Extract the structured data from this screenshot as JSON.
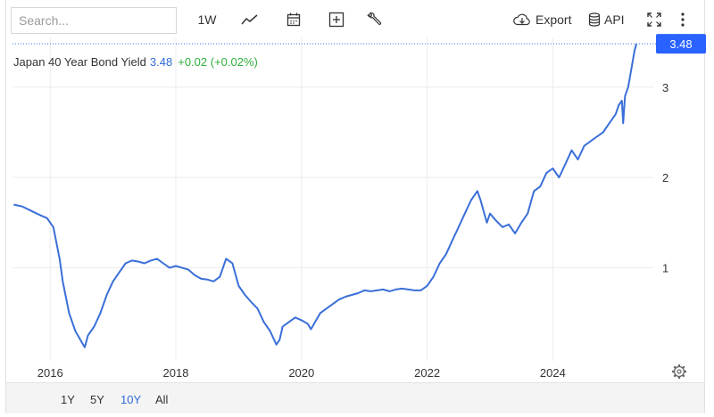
{
  "toolbar": {
    "search_placeholder": "Search...",
    "interval_label": "1W",
    "export_label": "Export",
    "api_label": "API",
    "icons": [
      "line-chart-icon",
      "calendar-icon",
      "plus-box-icon",
      "wrench-icon",
      "cloud-download-icon",
      "database-icon",
      "fullscreen-icon",
      "more-vertical-icon"
    ]
  },
  "legend": {
    "name": "Japan 40 Year Bond Yield",
    "value": "3.48",
    "change": "+0.02 (+0.02%)"
  },
  "ranges": [
    {
      "label": "1Y",
      "active": false
    },
    {
      "label": "5Y",
      "active": false
    },
    {
      "label": "10Y",
      "active": true
    },
    {
      "label": "All",
      "active": false
    }
  ],
  "colors": {
    "line": "#3a6fd8",
    "up": "#2fae3b",
    "price_tag": "#2962ff",
    "grid": "#ececec"
  },
  "chart_data": {
    "type": "line",
    "title": "Japan 40 Year Bond Yield",
    "x_ticks": [
      "2016",
      "2018",
      "2020",
      "2022",
      "2024"
    ],
    "x_tick_values": [
      2016,
      2018,
      2020,
      2022,
      2024
    ],
    "y_ticks": [
      1,
      2,
      3
    ],
    "last_value_label": "3.48",
    "xlim": [
      2015.4,
      2025.6
    ],
    "ylim": [
      -0.03,
      3.55
    ],
    "grid": true,
    "series": [
      {
        "x": [
          2015.42,
          2015.55,
          2015.7,
          2015.85,
          2015.95,
          2016.05,
          2016.15,
          2016.2,
          2016.3,
          2016.4,
          2016.5,
          2016.55,
          2016.6,
          2016.7,
          2016.8,
          2016.9,
          2017.0,
          2017.1,
          2017.2,
          2017.3,
          2017.4,
          2017.5,
          2017.6,
          2017.7,
          2017.8,
          2017.9,
          2018.0,
          2018.1,
          2018.2,
          2018.3,
          2018.4,
          2018.5,
          2018.6,
          2018.7,
          2018.8,
          2018.9,
          2019.0,
          2019.1,
          2019.2,
          2019.3,
          2019.4,
          2019.5,
          2019.6,
          2019.65,
          2019.7,
          2019.8,
          2019.9,
          2020.0,
          2020.1,
          2020.15,
          2020.2,
          2020.3,
          2020.4,
          2020.5,
          2020.6,
          2020.7,
          2020.8,
          2020.9,
          2021.0,
          2021.1,
          2021.2,
          2021.3,
          2021.4,
          2021.5,
          2021.6,
          2021.7,
          2021.8,
          2021.9,
          2022.0,
          2022.1,
          2022.2,
          2022.3,
          2022.4,
          2022.5,
          2022.6,
          2022.7,
          2022.8,
          2022.85,
          2022.95,
          2023.0,
          2023.1,
          2023.2,
          2023.3,
          2023.4,
          2023.5,
          2023.6,
          2023.7,
          2023.8,
          2023.9,
          2024.0,
          2024.1,
          2024.2,
          2024.3,
          2024.4,
          2024.5,
          2024.6,
          2024.7,
          2024.8,
          2024.9,
          2025.0,
          2025.05,
          2025.1,
          2025.12,
          2025.15,
          2025.2,
          2025.25,
          2025.3,
          2025.33
        ],
        "y": [
          1.7,
          1.68,
          1.63,
          1.58,
          1.55,
          1.45,
          1.1,
          0.85,
          0.5,
          0.3,
          0.18,
          0.12,
          0.25,
          0.35,
          0.5,
          0.7,
          0.85,
          0.95,
          1.05,
          1.08,
          1.07,
          1.05,
          1.08,
          1.1,
          1.05,
          1.0,
          1.02,
          1.0,
          0.98,
          0.92,
          0.88,
          0.87,
          0.85,
          0.9,
          1.1,
          1.05,
          0.8,
          0.7,
          0.62,
          0.55,
          0.4,
          0.3,
          0.15,
          0.2,
          0.35,
          0.4,
          0.45,
          0.42,
          0.38,
          0.32,
          0.38,
          0.5,
          0.55,
          0.6,
          0.65,
          0.68,
          0.7,
          0.72,
          0.75,
          0.74,
          0.75,
          0.76,
          0.74,
          0.76,
          0.77,
          0.76,
          0.75,
          0.75,
          0.8,
          0.9,
          1.05,
          1.15,
          1.3,
          1.45,
          1.6,
          1.75,
          1.85,
          1.75,
          1.5,
          1.6,
          1.52,
          1.45,
          1.48,
          1.38,
          1.5,
          1.6,
          1.85,
          1.9,
          2.05,
          2.1,
          2.0,
          2.15,
          2.3,
          2.2,
          2.35,
          2.4,
          2.45,
          2.5,
          2.6,
          2.7,
          2.8,
          2.85,
          2.6,
          2.9,
          3.0,
          3.2,
          3.4,
          3.48
        ]
      }
    ]
  }
}
